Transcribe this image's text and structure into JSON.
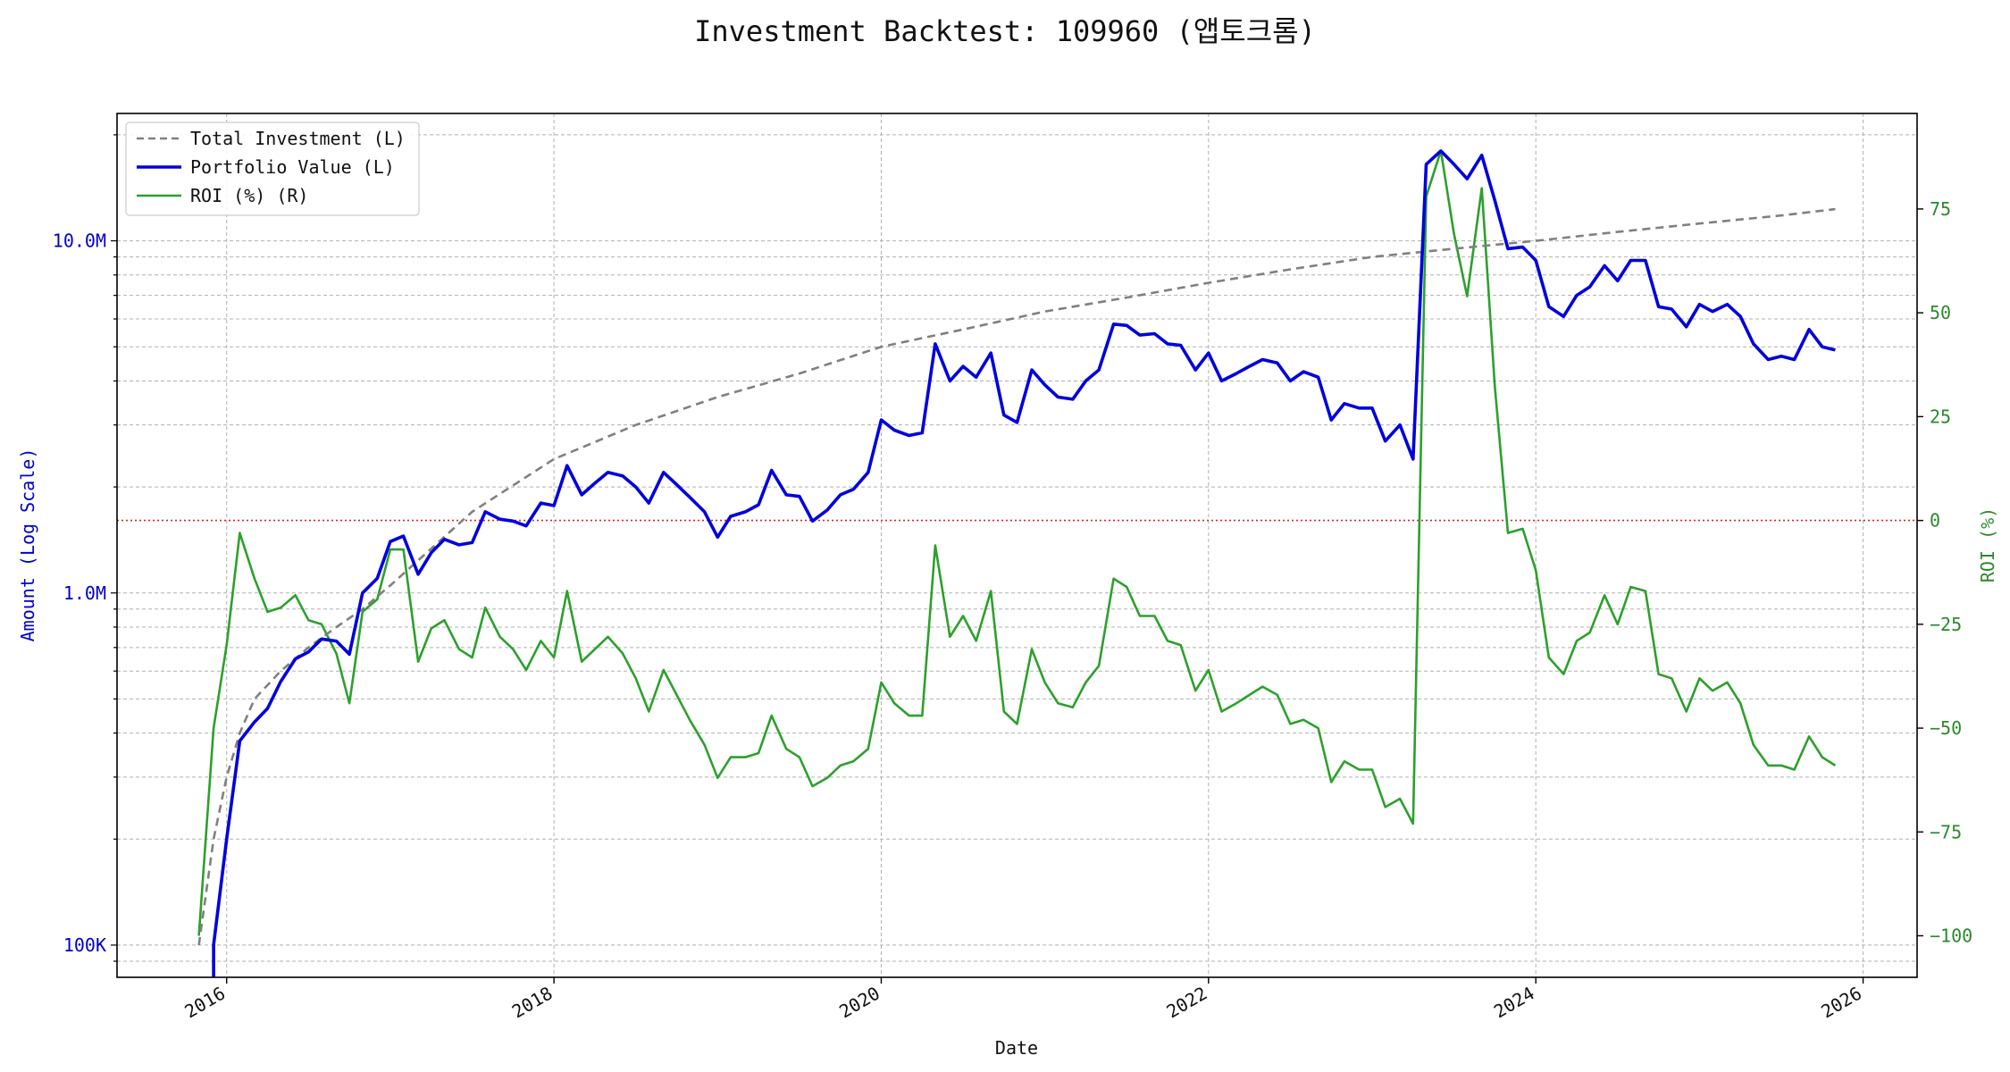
{
  "chart_data": {
    "type": "line",
    "title": "Investment Backtest: 109960 (앱토크롬)",
    "xlabel": "Date",
    "ylabel_left": "Amount (Log Scale)",
    "ylabel_right": "ROI (%)",
    "left_axis_scale": "log",
    "left_ylim": [
      81000,
      23000000
    ],
    "right_ylim": [
      -110,
      98
    ],
    "xlim": [
      2015.33,
      2026.33
    ],
    "x_ticks": [
      2016,
      2018,
      2020,
      2022,
      2024,
      2026
    ],
    "x_tick_labels": [
      "2016",
      "2018",
      "2020",
      "2022",
      "2024",
      "2026"
    ],
    "left_ticks": [
      100000,
      1000000,
      10000000
    ],
    "left_tick_labels": [
      "100K",
      "1.0M",
      "10.0M"
    ],
    "right_ticks": [
      -100,
      -75,
      -50,
      -25,
      0,
      25,
      50,
      75
    ],
    "right_tick_labels": [
      "−100",
      "−75",
      "−50",
      "−25",
      "0",
      "25",
      "50",
      "75"
    ],
    "grid": true,
    "legend_position": "upper-left",
    "reference_line": {
      "axis": "right",
      "value": 0,
      "style": "dotted",
      "color": "#d62728"
    },
    "colors": {
      "investment": "#808080",
      "portfolio": "#0000dd",
      "roi": "#2ca02c",
      "left_axis": "#0000cc",
      "right_axis": "#2a8a2a"
    },
    "series": [
      {
        "name": "Total Investment (L)",
        "axis": "left",
        "style": "dashed",
        "x": [
          2015.83,
          2015.92,
          2016.0,
          2016.08,
          2016.17,
          2016.33,
          2016.5,
          2016.67,
          2016.83,
          2017.0,
          2017.5,
          2018.0,
          2018.5,
          2019.0,
          2019.5,
          2020.0,
          2020.5,
          2021.0,
          2021.5,
          2022.0,
          2022.5,
          2023.0,
          2023.5,
          2024.0,
          2024.5,
          2025.0,
          2025.5,
          2025.83
        ],
        "y": [
          100000,
          200000,
          300000,
          400000,
          500000,
          600000,
          700000,
          800000,
          900000,
          1050000,
          1700000,
          2400000,
          3000000,
          3600000,
          4200000,
          5000000,
          5600000,
          6300000,
          6900000,
          7600000,
          8300000,
          9000000,
          9500000,
          10000000,
          10600000,
          11200000,
          11800000,
          12300000
        ]
      },
      {
        "name": "Portfolio Value (L)",
        "axis": "left",
        "style": "solid",
        "x": [
          2015.92,
          2015.92,
          2016.0,
          2016.08,
          2016.17,
          2016.25,
          2016.33,
          2016.42,
          2016.5,
          2016.58,
          2016.67,
          2016.75,
          2016.83,
          2016.92,
          2017.0,
          2017.08,
          2017.17,
          2017.25,
          2017.33,
          2017.42,
          2017.5,
          2017.58,
          2017.67,
          2017.75,
          2017.83,
          2017.92,
          2018.0,
          2018.08,
          2018.17,
          2018.25,
          2018.33,
          2018.42,
          2018.5,
          2018.58,
          2018.67,
          2018.75,
          2018.83,
          2018.92,
          2019.0,
          2019.08,
          2019.17,
          2019.25,
          2019.33,
          2019.42,
          2019.5,
          2019.58,
          2019.67,
          2019.75,
          2019.83,
          2019.92,
          2020.0,
          2020.08,
          2020.17,
          2020.25,
          2020.33,
          2020.42,
          2020.5,
          2020.58,
          2020.67,
          2020.75,
          2020.83,
          2020.92,
          2021.0,
          2021.08,
          2021.17,
          2021.25,
          2021.33,
          2021.42,
          2021.5,
          2021.58,
          2021.67,
          2021.75,
          2021.83,
          2021.92,
          2022.0,
          2022.08,
          2022.17,
          2022.25,
          2022.33,
          2022.42,
          2022.5,
          2022.58,
          2022.67,
          2022.75,
          2022.83,
          2022.92,
          2023.0,
          2023.08,
          2023.17,
          2023.25,
          2023.33,
          2023.42,
          2023.5,
          2023.58,
          2023.67,
          2023.75,
          2023.83,
          2023.92,
          2024.0,
          2024.08,
          2024.17,
          2024.25,
          2024.33,
          2024.42,
          2024.5,
          2024.58,
          2024.67,
          2024.75,
          2024.83,
          2024.92,
          2025.0,
          2025.08,
          2025.17,
          2025.25,
          2025.33,
          2025.42,
          2025.5,
          2025.58,
          2025.67,
          2025.75,
          2025.83
        ],
        "y": [
          75000,
          100000,
          200000,
          380000,
          430000,
          470000,
          560000,
          650000,
          680000,
          740000,
          730000,
          670000,
          1000000,
          1100000,
          1400000,
          1450000,
          1130000,
          1300000,
          1420000,
          1370000,
          1390000,
          1700000,
          1620000,
          1600000,
          1550000,
          1800000,
          1770000,
          2300000,
          1900000,
          2050000,
          2200000,
          2150000,
          2000000,
          1800000,
          2200000,
          2030000,
          1870000,
          1700000,
          1440000,
          1650000,
          1700000,
          1780000,
          2230000,
          1900000,
          1880000,
          1600000,
          1720000,
          1900000,
          1970000,
          2200000,
          3100000,
          2900000,
          2800000,
          2850000,
          5100000,
          4000000,
          4400000,
          4100000,
          4800000,
          3200000,
          3050000,
          4300000,
          3900000,
          3600000,
          3550000,
          4000000,
          4300000,
          5800000,
          5750000,
          5400000,
          5450000,
          5100000,
          5050000,
          4300000,
          4800000,
          4000000,
          4200000,
          4400000,
          4600000,
          4500000,
          4000000,
          4250000,
          4100000,
          3100000,
          3450000,
          3350000,
          3350000,
          2700000,
          3000000,
          2400000,
          16500000,
          18000000,
          16500000,
          15000000,
          17500000,
          13000000,
          9500000,
          9600000,
          8800000,
          6500000,
          6100000,
          7000000,
          7400000,
          8500000,
          7700000,
          8800000,
          8800000,
          6500000,
          6400000,
          5700000,
          6600000,
          6300000,
          6600000,
          6100000,
          5100000,
          4600000,
          4700000,
          4600000,
          5600000,
          5000000,
          4900000
        ]
      },
      {
        "name": "ROI (%) (R)",
        "axis": "right",
        "style": "solid",
        "x": [
          2015.83,
          2015.92,
          2016.0,
          2016.08,
          2016.17,
          2016.25,
          2016.33,
          2016.42,
          2016.5,
          2016.58,
          2016.67,
          2016.75,
          2016.83,
          2016.92,
          2017.0,
          2017.08,
          2017.17,
          2017.25,
          2017.33,
          2017.42,
          2017.5,
          2017.58,
          2017.67,
          2017.75,
          2017.83,
          2017.92,
          2018.0,
          2018.08,
          2018.17,
          2018.25,
          2018.33,
          2018.42,
          2018.5,
          2018.58,
          2018.67,
          2018.75,
          2018.83,
          2018.92,
          2019.0,
          2019.08,
          2019.17,
          2019.25,
          2019.33,
          2019.42,
          2019.5,
          2019.58,
          2019.67,
          2019.75,
          2019.83,
          2019.92,
          2020.0,
          2020.08,
          2020.17,
          2020.25,
          2020.33,
          2020.42,
          2020.5,
          2020.58,
          2020.67,
          2020.75,
          2020.83,
          2020.92,
          2021.0,
          2021.08,
          2021.17,
          2021.25,
          2021.33,
          2021.42,
          2021.5,
          2021.58,
          2021.67,
          2021.75,
          2021.83,
          2021.92,
          2022.0,
          2022.08,
          2022.17,
          2022.25,
          2022.33,
          2022.42,
          2022.5,
          2022.58,
          2022.67,
          2022.75,
          2022.83,
          2022.92,
          2023.0,
          2023.08,
          2023.17,
          2023.25,
          2023.33,
          2023.42,
          2023.5,
          2023.58,
          2023.67,
          2023.75,
          2023.83,
          2023.92,
          2024.0,
          2024.08,
          2024.17,
          2024.25,
          2024.33,
          2024.42,
          2024.5,
          2024.58,
          2024.67,
          2024.75,
          2024.83,
          2024.92,
          2025.0,
          2025.08,
          2025.17,
          2025.25,
          2025.33,
          2025.42,
          2025.5,
          2025.58,
          2025.67,
          2025.75,
          2025.83
        ],
        "y": [
          -100,
          -50,
          -30,
          -3,
          -14,
          -22,
          -21,
          -18,
          -24,
          -25,
          -32,
          -44,
          -22,
          -19,
          -7,
          -7,
          -34,
          -26,
          -24,
          -31,
          -33,
          -21,
          -28,
          -31,
          -36,
          -29,
          -33,
          -17,
          -34,
          -31,
          -28,
          -32,
          -38,
          -46,
          -36,
          -42,
          -48,
          -54,
          -62,
          -57,
          -57,
          -56,
          -47,
          -55,
          -57,
          -64,
          -62,
          -59,
          -58,
          -55,
          -39,
          -44,
          -47,
          -47,
          -6,
          -28,
          -23,
          -29,
          -17,
          -46,
          -49,
          -31,
          -39,
          -44,
          -45,
          -39,
          -35,
          -14,
          -16,
          -23,
          -23,
          -29,
          -30,
          -41,
          -36,
          -46,
          -44,
          -42,
          -40,
          -42,
          -49,
          -48,
          -50,
          -63,
          -58,
          -60,
          -60,
          -69,
          -67,
          -73,
          78,
          89,
          69,
          54,
          80,
          32,
          -3,
          -2,
          -12,
          -33,
          -37,
          -29,
          -27,
          -18,
          -25,
          -16,
          -17,
          -37,
          -38,
          -46,
          -38,
          -41,
          -39,
          -44,
          -54,
          -59,
          -59,
          -60,
          -52,
          -57,
          -59
        ]
      }
    ]
  }
}
